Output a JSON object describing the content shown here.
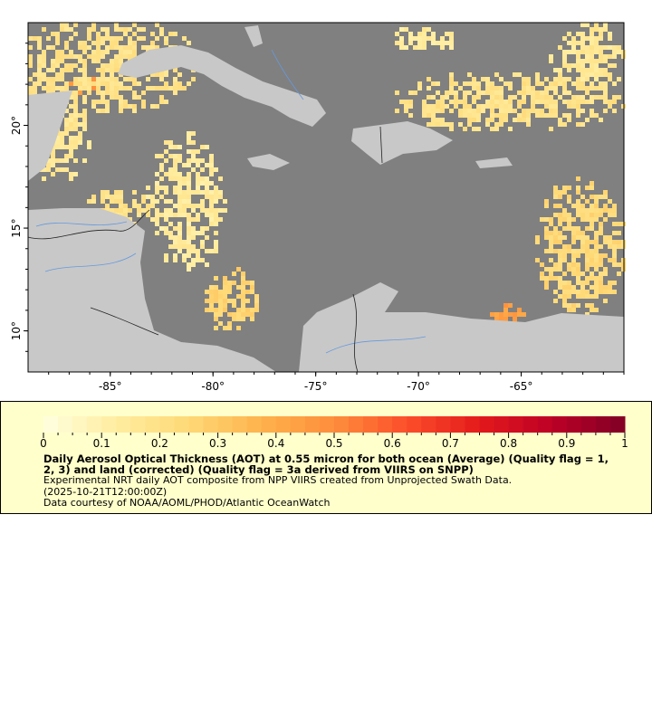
{
  "map": {
    "lon_range": [
      -89,
      -60
    ],
    "lat_range": [
      8,
      25
    ],
    "lon_ticks": [
      "-85°",
      "-80°",
      "-75°",
      "-70°",
      "-65°"
    ],
    "lat_ticks": [
      "20°",
      "15°",
      "10°"
    ],
    "colors": {
      "ocean": "#808080",
      "land": "#c8c8c8",
      "rivers": "#6699dd",
      "borders": "#555555"
    }
  },
  "legend": {
    "colorbar_ticks": [
      "0",
      "0.1",
      "0.2",
      "0.3",
      "0.4",
      "0.5",
      "0.6",
      "0.7",
      "0.8",
      "0.9",
      "1"
    ],
    "colorbar_range": [
      0,
      1
    ],
    "colorbar_stops": [
      "#ffffe0",
      "#ffeda0",
      "#fed976",
      "#feb24c",
      "#fd8d3c",
      "#fc4e2a",
      "#e31a1c",
      "#bd0026",
      "#800026"
    ],
    "title": "Daily Aerosol Optical Thickness (AOT) at 0.55 micron for both ocean (Average) (Quality flag = 1, 2, 3) and land (corrected) (Quality flag = 3a derived from VIIRS on SNPP)",
    "line1": "Experimental NRT daily AOT composite from NPP VIIRS created from Unprojected Swath Data.",
    "line2": "(2025-10-21T12:00:00Z)",
    "line3": "Data courtesy of NOAA/AOML/PHOD/Atlantic OceanWatch"
  }
}
